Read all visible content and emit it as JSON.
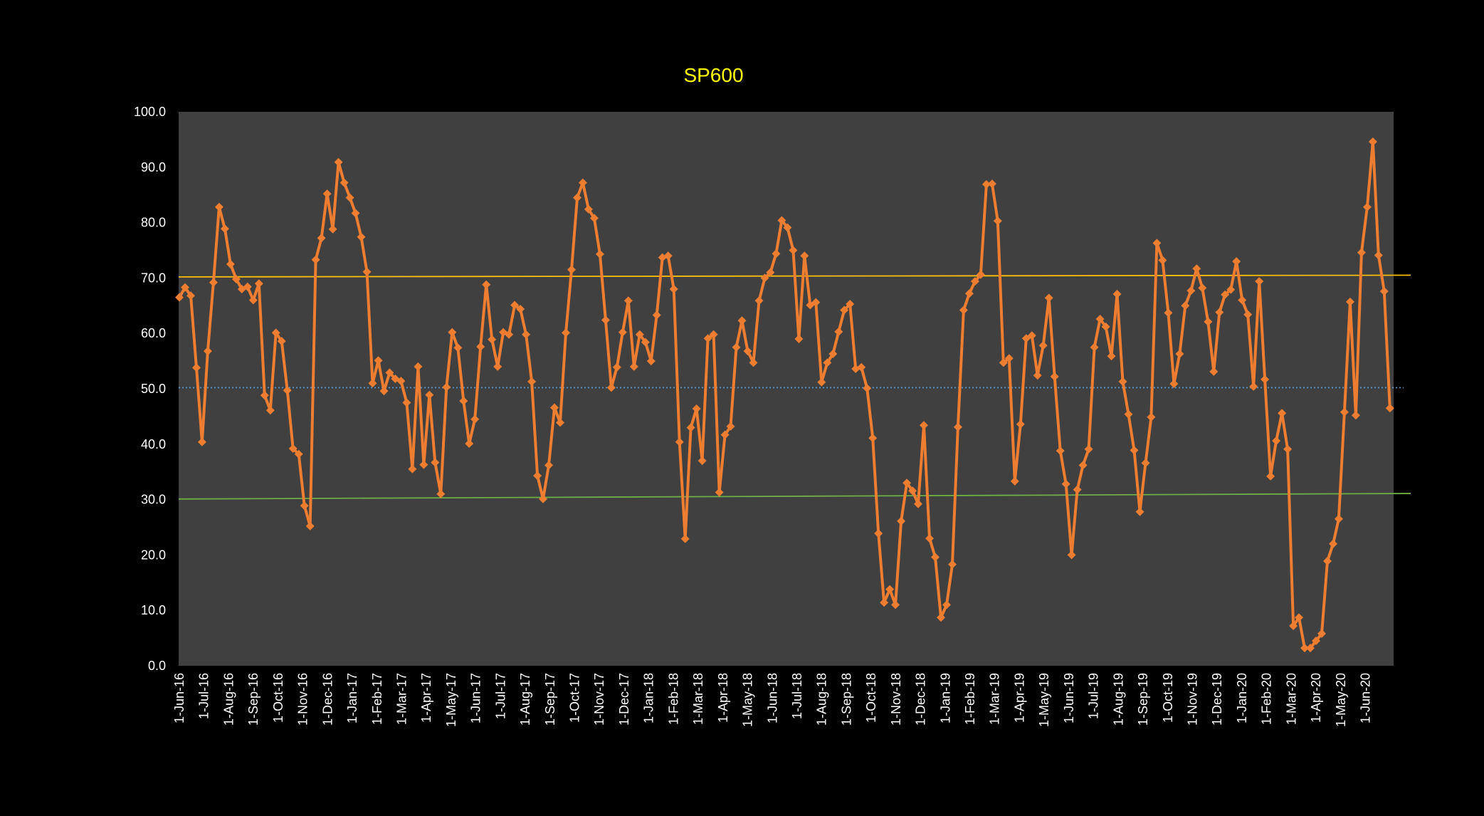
{
  "chart_data": {
    "type": "line",
    "title": "SP600",
    "xlabel": "",
    "ylabel": "",
    "ylim": [
      0,
      100
    ],
    "grid": false,
    "y_ticks": [
      "0.0",
      "10.0",
      "20.0",
      "30.0",
      "40.0",
      "50.0",
      "60.0",
      "70.0",
      "80.0",
      "90.0",
      "100.0"
    ],
    "x_ticks": [
      "1-Jun-16",
      "1-Jul-16",
      "1-Aug-16",
      "1-Sep-16",
      "1-Oct-16",
      "1-Nov-16",
      "1-Dec-16",
      "1-Jan-17",
      "1-Feb-17",
      "1-Mar-17",
      "1-Apr-17",
      "1-May-17",
      "1-Jun-17",
      "1-Jul-17",
      "1-Aug-17",
      "1-Sep-17",
      "1-Oct-17",
      "1-Nov-17",
      "1-Dec-17",
      "1-Jan-18",
      "1-Feb-18",
      "1-Mar-18",
      "1-Apr-18",
      "1-May-18",
      "1-Jun-18",
      "1-Jul-18",
      "1-Aug-18",
      "1-Sep-18",
      "1-Oct-18",
      "1-Nov-18",
      "1-Dec-18",
      "1-Jan-19",
      "1-Feb-19",
      "1-Mar-19",
      "1-Apr-19",
      "1-May-19",
      "1-Jun-19",
      "1-Jul-19",
      "1-Aug-19",
      "1-Sep-19",
      "1-Oct-19",
      "1-Nov-19",
      "1-Dec-19",
      "1-Jan-20",
      "1-Feb-20",
      "1-Mar-20",
      "1-Apr-20",
      "1-May-20",
      "1-Jun-20"
    ],
    "series": [
      {
        "color": "#ED7D31",
        "marker": "diamond",
        "values": [
          66.5,
          68.3,
          66.8,
          53.8,
          40.4,
          56.8,
          69.2,
          82.8,
          78.9,
          72.5,
          69.8,
          68.0,
          68.4,
          66.0,
          69.0,
          48.8,
          46.1,
          60.1,
          58.6,
          49.7,
          39.2,
          38.2,
          28.9,
          25.2,
          73.3,
          77.2,
          85.2,
          78.8,
          90.9,
          87.2,
          84.5,
          81.7,
          77.4,
          71.1,
          51.0,
          55.1,
          49.6,
          52.9,
          51.8,
          51.4,
          47.5,
          35.5,
          54.0,
          36.3,
          48.9,
          36.7,
          31.0,
          50.3,
          60.2,
          57.4,
          47.8,
          40.1,
          44.5,
          57.6,
          68.8,
          58.9,
          54.0,
          60.2,
          59.8,
          65.1,
          64.4,
          59.8,
          51.3,
          34.3,
          30.1,
          36.2,
          46.6,
          43.9,
          60.1,
          71.5,
          84.5,
          87.2,
          82.4,
          80.8,
          74.3,
          62.4,
          50.2,
          53.9,
          60.2,
          65.9,
          54.0,
          59.8,
          58.4,
          55.0,
          63.3,
          73.7,
          74.0,
          68.0,
          40.4,
          22.9,
          43.0,
          46.4,
          37.0,
          59.1,
          59.8,
          31.3,
          41.7,
          43.2,
          57.5,
          62.3,
          56.8,
          54.7,
          65.9,
          70.0,
          71.0,
          74.4,
          80.4,
          79.1,
          75.0,
          59.0,
          74.0,
          65.1,
          65.6,
          51.2,
          54.7,
          56.3,
          60.3,
          64.2,
          65.3,
          53.6,
          53.9,
          50.1,
          41.1,
          23.9,
          11.4,
          13.8,
          11.0,
          26.1,
          33.0,
          31.6,
          29.2,
          43.4,
          23.0,
          19.6,
          8.7,
          11.0,
          18.3,
          43.1,
          64.2,
          67.2,
          69.4,
          70.6,
          86.9,
          87.0,
          80.3,
          54.7,
          55.5,
          33.3,
          43.6,
          59.1,
          59.6,
          52.4,
          57.8,
          66.4,
          52.2,
          38.8,
          32.8,
          20.0,
          31.8,
          36.2,
          39.1,
          57.5,
          62.6,
          61.2,
          55.9,
          67.1,
          51.3,
          45.4,
          38.9,
          27.8,
          36.6,
          44.9,
          76.3,
          73.2,
          63.7,
          50.9,
          56.3,
          65.0,
          67.7,
          71.7,
          68.2,
          62.1,
          53.1,
          63.8,
          67.0,
          67.9,
          73.0,
          66.0,
          63.4,
          50.4,
          69.4,
          51.7,
          34.2,
          40.6,
          45.6,
          39.1,
          7.2,
          8.7,
          3.2,
          3.2,
          4.5,
          5.8,
          18.9,
          22.0,
          26.5,
          45.8,
          65.7,
          45.2,
          74.6,
          82.8,
          94.6,
          74.1,
          67.6,
          46.5
        ]
      }
    ],
    "reference_lines": [
      {
        "label": "",
        "y_start": 70.2,
        "y_end": 70.5,
        "color": "#FFC000",
        "style": "solid"
      },
      {
        "label": "",
        "y_start": 50.2,
        "y_end": 50.2,
        "color": "#5B9BD5",
        "style": "dotted"
      },
      {
        "label": "",
        "y_start": 30.1,
        "y_end": 31.1,
        "color": "#70AD47",
        "style": "solid"
      }
    ],
    "colors": {
      "background": "#000000",
      "plot_area": "#404040",
      "title": "#FFFF00",
      "text": "#FFFFFF"
    }
  }
}
